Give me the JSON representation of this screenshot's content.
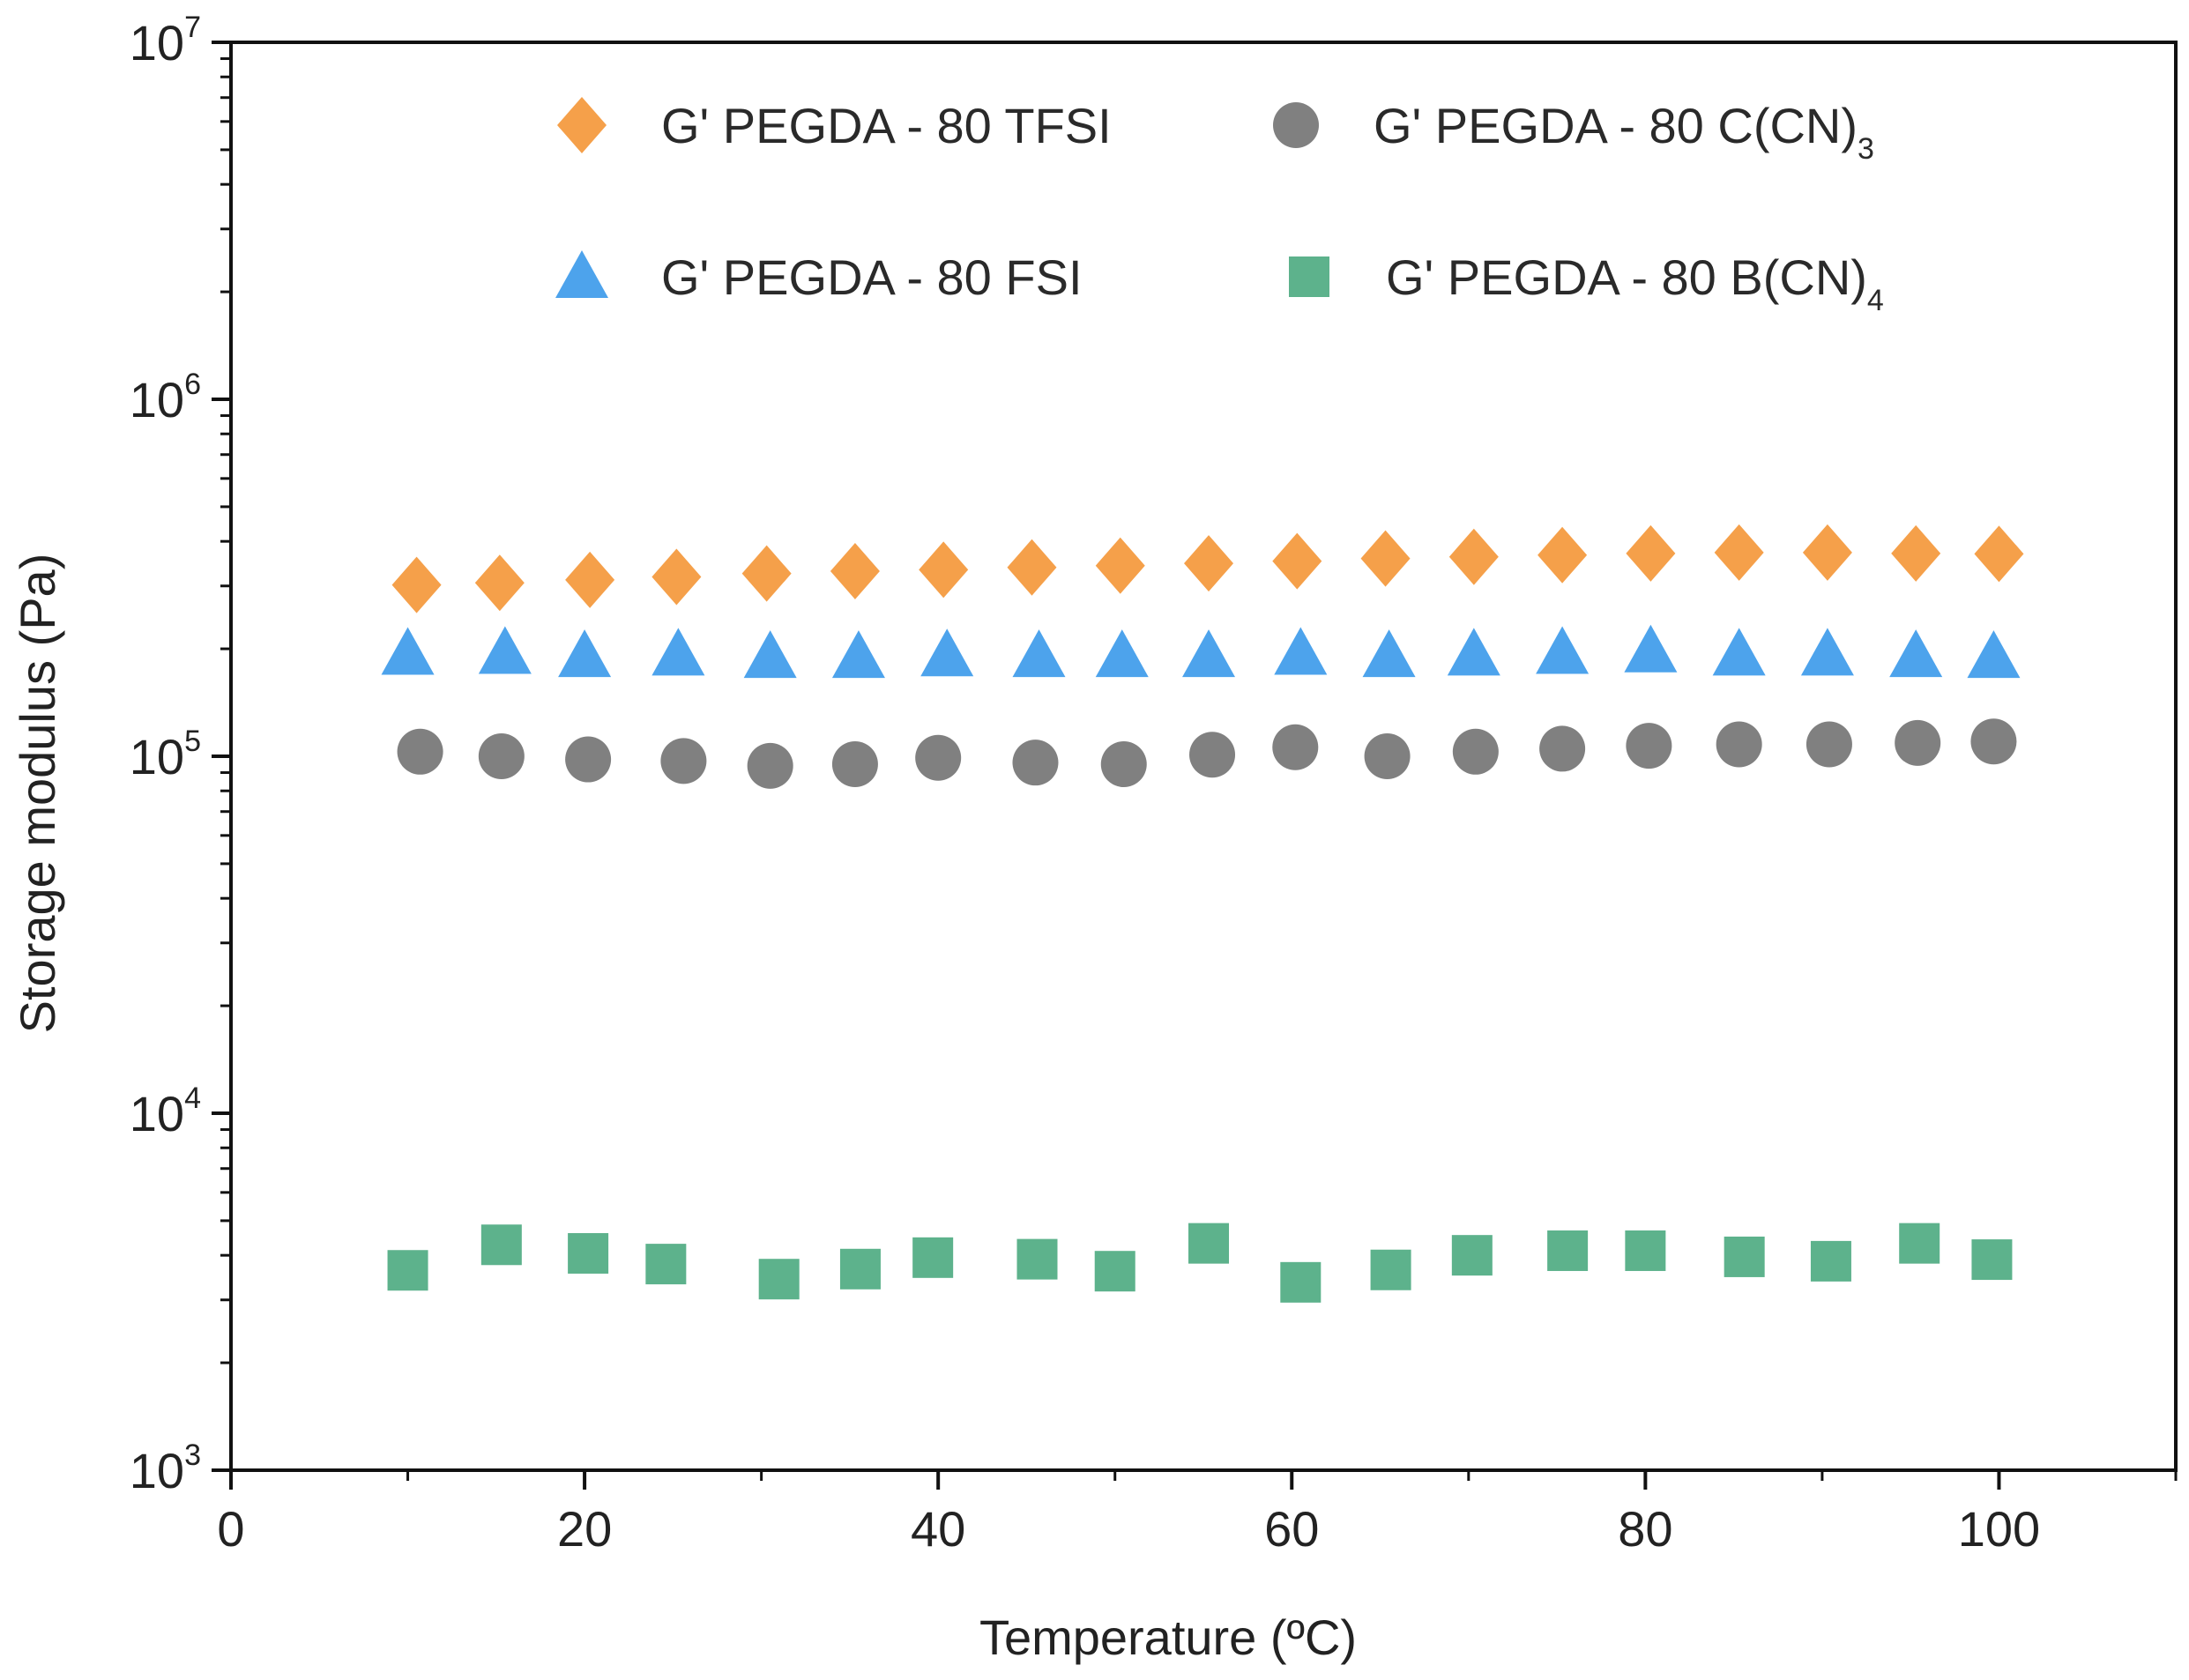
{
  "chart_data": {
    "type": "scatter",
    "title": "",
    "xlabel": "Temperature (ºC)",
    "ylabel": "Storage modulus (Pa)",
    "xlim": [
      0,
      110
    ],
    "ylim": [
      1000,
      10000000
    ],
    "yscale": "log",
    "grid": false,
    "legend_position": "top",
    "x_ticks": [
      "0",
      "20",
      "40",
      "60",
      "80",
      "100"
    ],
    "x_tick_values": [
      0,
      20,
      40,
      60,
      80,
      100
    ],
    "y_tick_bases": [
      "10",
      "10",
      "10",
      "10",
      "10"
    ],
    "y_tick_exponents": [
      "3",
      "4",
      "5",
      "6",
      "7"
    ],
    "y_tick_values": [
      1000,
      10000,
      100000,
      1000000,
      10000000
    ],
    "series": [
      {
        "name": "G' PEGDA - 80 TFSI",
        "legend_main": "G' PEGDA - 80 TFSI",
        "legend_sub": "",
        "marker": "diamond",
        "color": "#f5a04a",
        "x": [
          10.5,
          15.2,
          20.3,
          25.2,
          30.3,
          35.3,
          40.3,
          45.3,
          50.3,
          55.3,
          60.3,
          65.3,
          70.3,
          75.3,
          80.3,
          85.3,
          90.3,
          95.3,
          100.0
        ],
        "y": [
          302000,
          306000,
          312000,
          318000,
          325000,
          330000,
          333000,
          338000,
          342000,
          347000,
          352000,
          358000,
          362000,
          366000,
          370000,
          372000,
          372000,
          370000,
          369000
        ]
      },
      {
        "name": "G' PEGDA - 80 C(CN)3",
        "legend_main": "G' PEGDA - 80 C(CN)",
        "legend_sub": "3",
        "marker": "circle",
        "color": "#808080",
        "x": [
          10.7,
          15.3,
          20.2,
          25.6,
          30.5,
          35.3,
          40.0,
          45.5,
          50.5,
          55.5,
          60.2,
          65.4,
          70.4,
          75.3,
          80.2,
          85.3,
          90.4,
          95.4,
          99.7
        ],
        "y": [
          103000,
          100000,
          98000,
          97000,
          94000,
          95000,
          99000,
          96000,
          95000,
          101000,
          106000,
          100000,
          103000,
          105000,
          107000,
          108000,
          108000,
          109000,
          110000
        ]
      },
      {
        "name": "G' PEGDA - 80 FSI",
        "legend_main": "G' PEGDA - 80 FSI",
        "legend_sub": "",
        "marker": "triangle",
        "color": "#4da3ec",
        "x": [
          10.0,
          15.5,
          20.0,
          25.3,
          30.5,
          35.5,
          40.5,
          45.7,
          50.4,
          55.3,
          60.5,
          65.5,
          70.3,
          75.3,
          80.3,
          85.3,
          90.3,
          95.3,
          99.7
        ],
        "y": [
          194000,
          195000,
          191000,
          193000,
          190000,
          190000,
          192000,
          191000,
          191000,
          191000,
          194000,
          191000,
          193000,
          195000,
          197000,
          193000,
          193000,
          191000,
          190000
        ]
      },
      {
        "name": "G' PEGDA - 80 B(CN)4",
        "legend_main": "G' PEGDA - 80 B(CN)",
        "legend_sub": "4",
        "marker": "square",
        "color": "#5db28c",
        "x": [
          10.0,
          15.3,
          20.2,
          24.6,
          31.0,
          35.6,
          39.7,
          45.6,
          50.0,
          55.3,
          60.5,
          65.6,
          70.2,
          75.6,
          80.0,
          85.6,
          90.5,
          95.5,
          99.6
        ],
        "y": [
          3630,
          4280,
          4050,
          3780,
          3430,
          3660,
          3940,
          3900,
          3610,
          4320,
          3360,
          3640,
          4000,
          4120,
          4120,
          3960,
          3850,
          4320,
          3890
        ]
      }
    ],
    "legend_order": [
      0,
      1,
      2,
      3
    ]
  }
}
